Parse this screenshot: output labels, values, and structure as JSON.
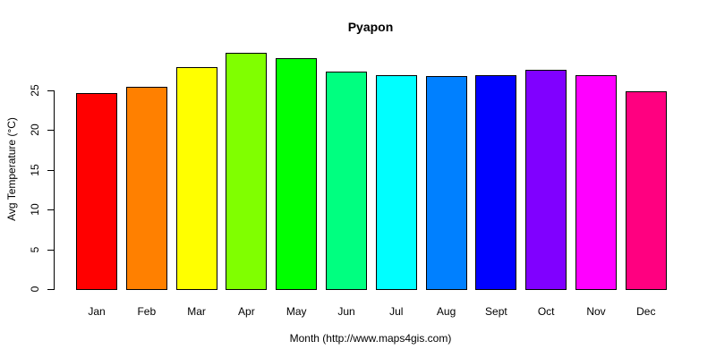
{
  "chart_data": {
    "type": "bar",
    "title": "Pyapon",
    "xlabel": "Month (http://www.maps4gis.com)",
    "ylabel": "Avg Temperature (°C)",
    "categories": [
      "Jan",
      "Feb",
      "Mar",
      "Apr",
      "May",
      "Jun",
      "Jul",
      "Aug",
      "Sept",
      "Oct",
      "Nov",
      "Dec"
    ],
    "values": [
      24.7,
      25.5,
      27.9,
      29.7,
      29.0,
      27.4,
      26.9,
      26.8,
      26.9,
      27.6,
      26.9,
      24.9
    ],
    "colors": [
      "#FF0000",
      "#FF8000",
      "#FFFF00",
      "#80FF00",
      "#00FF00",
      "#00FF80",
      "#00FFFF",
      "#0080FF",
      "#0000FF",
      "#8000FF",
      "#FF00FF",
      "#FF0080"
    ],
    "yticks": [
      0,
      5,
      10,
      15,
      20,
      25
    ],
    "ylim": [
      0,
      30
    ],
    "grid": false,
    "legend": null
  }
}
